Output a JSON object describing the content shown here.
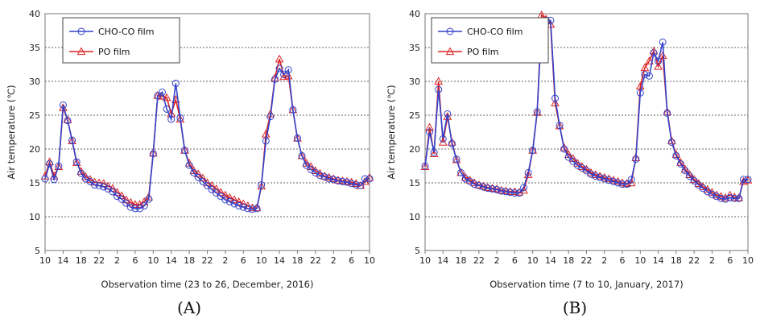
{
  "chart_data": [
    {
      "id": "A",
      "type": "line",
      "caption": "(A)",
      "title": "",
      "xlabel": "Observation time (23 to 26, December, 2016)",
      "ylabel": "Air temperature (℃)",
      "ylim": [
        5,
        40
      ],
      "yticks": [
        "5",
        "10",
        "15",
        "20",
        "25",
        "30",
        "35",
        "40"
      ],
      "xticks": [
        "10",
        "14",
        "18",
        "22",
        "2",
        "6",
        "10",
        "14",
        "18",
        "22",
        "2",
        "6",
        "10",
        "14",
        "18",
        "22",
        "2",
        "6",
        "10"
      ],
      "grid": "horizontal-dashed",
      "legend_position": "top-left",
      "x": [
        10,
        11,
        12,
        13,
        14,
        15,
        16,
        17,
        18,
        19,
        20,
        21,
        22,
        23,
        24,
        25,
        26,
        27,
        28,
        29,
        30,
        31,
        32,
        33,
        34,
        35,
        36,
        37,
        38,
        39,
        40,
        41,
        42,
        43,
        44,
        45,
        46,
        47,
        48,
        49,
        50,
        51,
        52,
        53,
        54,
        55,
        56,
        57,
        58,
        59,
        60,
        61,
        62,
        63,
        64,
        65,
        66,
        67,
        68,
        69,
        70,
        71,
        72,
        73,
        74,
        75,
        76,
        77,
        78,
        79,
        80,
        81,
        82
      ],
      "series": [
        {
          "name": "CHO-CO film",
          "color": "#3344cc",
          "marker": "circle",
          "values": [
            15.6,
            17.8,
            15.5,
            17.5,
            26.5,
            24.2,
            21.3,
            18.1,
            16.4,
            15.6,
            15.2,
            14.7,
            14.6,
            14.4,
            14.1,
            13.7,
            13.0,
            12.6,
            12.0,
            11.4,
            11.2,
            11.2,
            11.6,
            12.6,
            19.3,
            27.9,
            28.4,
            25.9,
            24.4,
            29.7,
            24.6,
            19.8,
            17.6,
            16.5,
            15.8,
            15.2,
            14.6,
            14.0,
            13.5,
            13.0,
            12.5,
            12.2,
            11.9,
            11.6,
            11.4,
            11.2,
            11.1,
            11.2,
            14.7,
            21.2,
            24.8,
            30.3,
            31.9,
            31.0,
            31.7,
            25.8,
            21.6,
            19.0,
            17.6,
            17.0,
            16.5,
            16.1,
            15.9,
            15.6,
            15.5,
            15.3,
            15.2,
            15.1,
            14.9,
            14.7,
            14.6,
            15.6,
            15.6
          ]
        },
        {
          "name": "PO film",
          "color": "#dd2222",
          "marker": "triangle",
          "values": [
            16.0,
            18.1,
            16.0,
            17.4,
            26.1,
            24.3,
            21.2,
            18.0,
            16.7,
            15.9,
            15.5,
            15.1,
            15.0,
            14.9,
            14.5,
            14.2,
            13.6,
            13.1,
            12.5,
            12.1,
            11.8,
            11.8,
            12.2,
            12.9,
            19.4,
            27.9,
            27.8,
            27.6,
            25.2,
            27.3,
            24.4,
            19.8,
            17.9,
            16.8,
            16.3,
            15.7,
            15.0,
            14.6,
            14.1,
            13.6,
            13.2,
            12.8,
            12.5,
            12.2,
            11.9,
            11.6,
            11.3,
            11.3,
            14.5,
            22.2,
            25.2,
            30.5,
            33.3,
            30.7,
            30.8,
            25.8,
            21.6,
            19.0,
            17.9,
            17.4,
            16.8,
            16.4,
            16.0,
            15.8,
            15.6,
            15.4,
            15.3,
            15.2,
            15.1,
            14.9,
            14.6,
            15.2,
            15.8
          ]
        }
      ]
    },
    {
      "id": "B",
      "type": "line",
      "caption": "(B)",
      "title": "",
      "xlabel": "Observation time (7 to 10, January, 2017)",
      "ylabel": "Air temperature (℃)",
      "ylim": [
        5,
        40
      ],
      "yticks": [
        "5",
        "10",
        "15",
        "20",
        "25",
        "30",
        "35",
        "40"
      ],
      "xticks": [
        "10",
        "14",
        "18",
        "22",
        "2",
        "6",
        "10",
        "14",
        "18",
        "22",
        "2",
        "6",
        "10",
        "14",
        "18",
        "22",
        "2",
        "6",
        "10"
      ],
      "grid": "horizontal-dashed",
      "legend_position": "top-left",
      "x": [
        10,
        11,
        12,
        13,
        14,
        15,
        16,
        17,
        18,
        19,
        20,
        21,
        22,
        23,
        24,
        25,
        26,
        27,
        28,
        29,
        30,
        31,
        32,
        33,
        34,
        35,
        36,
        37,
        38,
        39,
        40,
        41,
        42,
        43,
        44,
        45,
        46,
        47,
        48,
        49,
        50,
        51,
        52,
        53,
        54,
        55,
        56,
        57,
        58,
        59,
        60,
        61,
        62,
        63,
        64,
        65,
        66,
        67,
        68,
        69,
        70,
        71,
        72,
        73,
        74,
        75,
        76,
        77,
        78,
        79,
        80,
        81,
        82
      ],
      "series": [
        {
          "name": "CHO-CO film",
          "color": "#3344cc",
          "marker": "circle",
          "values": [
            17.5,
            22.5,
            19.5,
            28.8,
            21.5,
            25.2,
            20.8,
            18.5,
            16.5,
            15.6,
            15.2,
            14.8,
            14.6,
            14.4,
            14.2,
            14.1,
            14.0,
            13.8,
            13.7,
            13.6,
            13.5,
            13.5,
            14.3,
            16.5,
            19.8,
            25.5,
            38.5,
            39.0,
            39.0,
            27.5,
            23.5,
            20.0,
            18.8,
            18.2,
            17.6,
            17.2,
            16.8,
            16.3,
            16.0,
            15.8,
            15.6,
            15.4,
            15.2,
            15.0,
            14.8,
            14.8,
            15.5,
            18.5,
            28.3,
            31.0,
            30.8,
            34.2,
            33.0,
            35.8,
            25.3,
            21.0,
            19.0,
            17.8,
            16.8,
            16.0,
            15.3,
            14.7,
            14.2,
            13.7,
            13.3,
            13.0,
            12.7,
            12.6,
            12.8,
            12.7,
            12.7,
            15.5,
            15.5
          ]
        },
        {
          "name": "PO film",
          "color": "#dd2222",
          "marker": "triangle",
          "values": [
            17.4,
            23.2,
            19.3,
            30.0,
            21.0,
            24.8,
            21.0,
            18.4,
            16.5,
            15.8,
            15.4,
            15.0,
            14.7,
            14.5,
            14.3,
            14.2,
            14.1,
            13.9,
            13.8,
            13.7,
            13.7,
            13.6,
            13.9,
            16.2,
            19.8,
            25.4,
            39.8,
            39.2,
            38.4,
            26.8,
            23.4,
            20.2,
            19.2,
            18.6,
            17.9,
            17.4,
            17.0,
            16.5,
            16.2,
            16.0,
            15.8,
            15.6,
            15.4,
            15.2,
            15.0,
            14.9,
            15.0,
            18.7,
            29.3,
            32.0,
            33.0,
            34.5,
            32.2,
            33.8,
            25.5,
            21.2,
            19.2,
            18.0,
            17.0,
            16.2,
            15.5,
            14.9,
            14.4,
            14.0,
            13.6,
            13.2,
            13.0,
            12.8,
            13.2,
            12.9,
            12.8,
            15.2,
            15.4
          ]
        }
      ]
    }
  ]
}
